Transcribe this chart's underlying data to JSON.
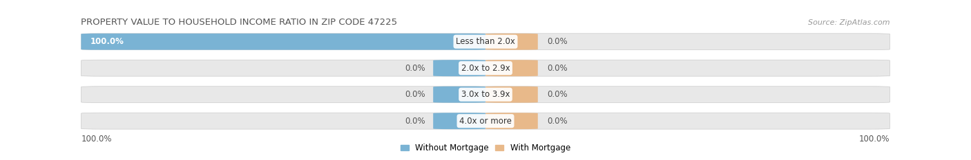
{
  "title": "PROPERTY VALUE TO HOUSEHOLD INCOME RATIO IN ZIP CODE 47225",
  "source": "Source: ZipAtlas.com",
  "categories": [
    "Less than 2.0x",
    "2.0x to 2.9x",
    "3.0x to 3.9x",
    "4.0x or more"
  ],
  "without_mortgage": [
    100.0,
    0.0,
    0.0,
    0.0
  ],
  "with_mortgage": [
    0.0,
    0.0,
    0.0,
    0.0
  ],
  "color_without": "#7ab3d4",
  "color_with": "#e8b98a",
  "bar_bg_color": "#e8e8e8",
  "label_left_outside": [
    "100.0%",
    "0.0%",
    "0.0%",
    "0.0%"
  ],
  "label_right_outside": [
    "0.0%",
    "0.0%",
    "0.0%",
    "0.0%"
  ],
  "x_left_label": "100.0%",
  "x_right_label": "100.0%",
  "legend_without": "Without Mortgage",
  "legend_with": "With Mortgage",
  "title_fontsize": 9.5,
  "source_fontsize": 8,
  "label_fontsize": 8.5,
  "axis_label_fontsize": 8.5,
  "min_bar_width": 0.055
}
